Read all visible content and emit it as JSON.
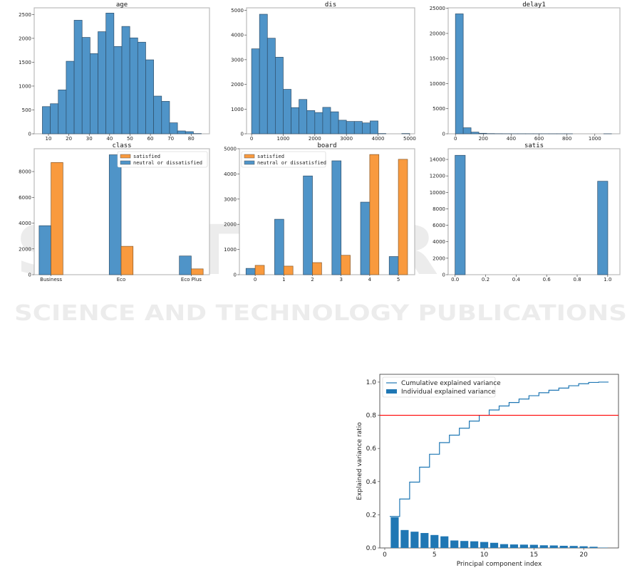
{
  "watermark": {
    "line1": "SCITEPRESS",
    "line2": "SCIENCE AND TECHNOLOGY PUBLICATIONS"
  },
  "colors": {
    "blue": "#4f94c8",
    "orange": "#f99a3e",
    "pca_blue": "#1f77b4",
    "threshold_red": "#ff0000"
  },
  "chart_data": [
    {
      "type": "bar",
      "subtype": "histogram",
      "title": "age",
      "bin_start": 7,
      "bin_width": 3.9,
      "values": [
        570,
        630,
        920,
        1520,
        2380,
        2020,
        1680,
        2140,
        2530,
        1830,
        2250,
        2010,
        1920,
        1550,
        790,
        680,
        230,
        60,
        45,
        5
      ],
      "xlim": [
        3,
        89
      ],
      "ylim": [
        0,
        2640
      ],
      "xticks": [
        10,
        20,
        30,
        40,
        50,
        60,
        70,
        80
      ],
      "yticks": [
        0,
        500,
        1000,
        1500,
        2000,
        2500
      ],
      "grid": false
    },
    {
      "type": "bar",
      "subtype": "histogram",
      "title": "dis",
      "bin_start": 0,
      "bin_width": 250,
      "values": [
        3440,
        4840,
        3870,
        3100,
        1800,
        1060,
        1390,
        940,
        860,
        1070,
        890,
        550,
        500,
        500,
        440,
        520,
        10,
        0,
        0,
        10
      ],
      "xlim": [
        -160,
        5160
      ],
      "ylim": [
        0,
        5100
      ],
      "xticks": [
        0,
        1000,
        2000,
        3000,
        4000,
        5000
      ],
      "yticks": [
        0,
        1000,
        2000,
        3000,
        4000,
        5000
      ],
      "grid": false
    },
    {
      "type": "bar",
      "subtype": "histogram",
      "title": "delay1",
      "bin_start": 0,
      "bin_width": 56,
      "values": [
        23900,
        1200,
        330,
        100,
        40,
        20,
        10,
        5,
        5,
        3,
        2,
        2,
        1,
        1,
        1,
        0,
        0,
        0,
        0,
        1
      ],
      "xlim": [
        -52,
        1180
      ],
      "ylim": [
        0,
        25100
      ],
      "xticks": [
        0,
        200,
        400,
        600,
        800,
        1000
      ],
      "yticks": [
        0,
        5000,
        10000,
        15000,
        20000,
        25000
      ],
      "grid": false
    },
    {
      "type": "bar",
      "subtype": "grouped",
      "title": "class",
      "categories": [
        "Business",
        "Eco",
        "Eco Plus"
      ],
      "series": [
        {
          "name": "satisfied",
          "color": "#f99a3e",
          "values": [
            8700,
            2200,
            450
          ]
        },
        {
          "name": "neutral or dissatisfied",
          "color": "#4f94c8",
          "values": [
            3800,
            9300,
            1450
          ]
        }
      ],
      "xlim": [
        -0.24,
        2.26
      ],
      "ylim": [
        0,
        9770
      ],
      "yticks": [
        0,
        2000,
        4000,
        6000,
        8000
      ],
      "legend": "top-right",
      "grid": false
    },
    {
      "type": "bar",
      "subtype": "grouped",
      "title": "board",
      "categories": [
        "0",
        "1",
        "2",
        "3",
        "4",
        "5"
      ],
      "series": [
        {
          "name": "satisfied",
          "color": "#f99a3e",
          "values": [
            370,
            340,
            480,
            770,
            4770,
            4580
          ]
        },
        {
          "name": "neutral or dissatisfied",
          "color": "#4f94c8",
          "values": [
            250,
            2200,
            3920,
            4520,
            2880,
            720
          ]
        }
      ],
      "xlim": [
        -0.55,
        5.57
      ],
      "ylim": [
        0,
        5000
      ],
      "yticks": [
        0,
        1000,
        2000,
        3000,
        4000,
        5000
      ],
      "legend": "top-left",
      "grid": false
    },
    {
      "type": "bar",
      "subtype": "histogram",
      "title": "satis",
      "bin_start": 0,
      "bin_width": 0.0667,
      "values": [
        14500,
        0,
        0,
        0,
        0,
        0,
        0,
        0,
        0,
        0,
        0,
        0,
        0,
        0,
        11350
      ],
      "xlim": [
        -0.045,
        1.08
      ],
      "ylim": [
        0,
        15300
      ],
      "xticks": [
        "0.0",
        "0.2",
        "0.4",
        "0.6",
        "0.8",
        "1.0"
      ],
      "yticks": [
        0,
        2000,
        4000,
        6000,
        8000,
        10000,
        12000,
        14000
      ],
      "grid": false
    },
    {
      "type": "bar",
      "subtype": "pca",
      "title": "",
      "xlabel": "Principal component index",
      "ylabel": "Explained variance ratio",
      "x": [
        1,
        2,
        3,
        4,
        5,
        6,
        7,
        8,
        9,
        10,
        11,
        12,
        13,
        14,
        15,
        16,
        17,
        18,
        19,
        20,
        21,
        22
      ],
      "series": [
        {
          "name": "Individual explained variance",
          "kind": "bar",
          "values": [
            0.185,
            0.108,
            0.098,
            0.09,
            0.078,
            0.07,
            0.045,
            0.042,
            0.04,
            0.036,
            0.031,
            0.023,
            0.021,
            0.02,
            0.019,
            0.016,
            0.015,
            0.013,
            0.012,
            0.01,
            0.007,
            0.002
          ]
        },
        {
          "name": "Cumulative explained variance",
          "kind": "step",
          "values": [
            0.19,
            0.295,
            0.397,
            0.487,
            0.565,
            0.635,
            0.68,
            0.722,
            0.765,
            0.8,
            0.832,
            0.856,
            0.877,
            0.898,
            0.918,
            0.936,
            0.951,
            0.964,
            0.978,
            0.99,
            0.998,
            1.0
          ]
        }
      ],
      "threshold": 0.8,
      "xlim": [
        -0.5,
        23.5
      ],
      "ylim": [
        0,
        1.047
      ],
      "xticks": [
        0,
        5,
        10,
        15,
        20
      ],
      "yticks": [
        "0.0",
        "0.2",
        "0.4",
        "0.6",
        "0.8",
        "1.0"
      ],
      "legend": "top-left",
      "grid": false
    }
  ]
}
